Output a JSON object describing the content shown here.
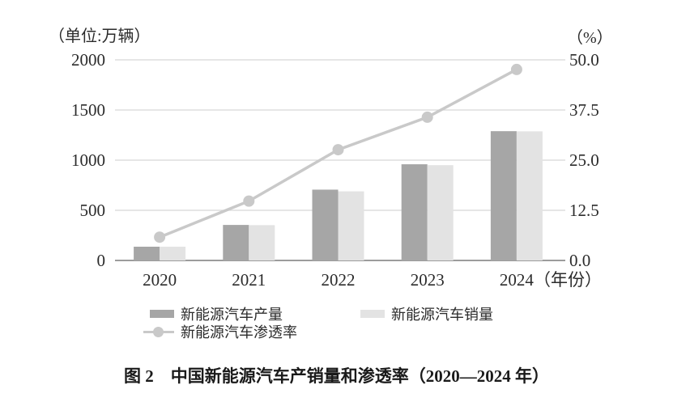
{
  "figure": {
    "left_axis_unit": "（单位:万辆）",
    "right_axis_unit": "（%）",
    "caption": "图 2　中国新能源汽车产销量和渗透率（2020—2024 年）"
  },
  "chart_data": {
    "type": "bar",
    "title": "中国新能源汽车产销量和渗透率（2020—2024 年）",
    "categories": [
      "2020",
      "2021",
      "2022",
      "2023",
      "2024"
    ],
    "series": [
      {
        "name": "新能源汽车产量",
        "type": "bar",
        "axis": "left",
        "color": "#a6a6a6",
        "values": [
          137,
          354,
          706,
          959,
          1289
        ]
      },
      {
        "name": "新能源汽车销量",
        "type": "bar",
        "axis": "left",
        "color": "#e3e3e3",
        "values": [
          137,
          352,
          689,
          950,
          1287
        ]
      },
      {
        "name": "新能源汽车渗透率",
        "type": "line",
        "axis": "right",
        "color": "#c9c9c9",
        "values": [
          5.8,
          14.8,
          27.6,
          35.7,
          47.6
        ]
      }
    ],
    "left_axis": {
      "label": "（单位:万辆）",
      "min": 0,
      "max": 2000,
      "ticks": [
        "2000",
        "1500",
        "1000",
        "500",
        "0"
      ]
    },
    "right_axis": {
      "label": "（%）",
      "min": 0,
      "max": 50,
      "ticks": [
        "50.0",
        "37.5",
        "25.0",
        "12.5",
        "0.0"
      ]
    },
    "x_axis_label_suffix": "（年份）",
    "grid": true,
    "legend_position": "bottom",
    "colors": {
      "grid": "#d8d8d8",
      "axis": "#9c9c9c",
      "text": "#2b2b2b"
    }
  }
}
